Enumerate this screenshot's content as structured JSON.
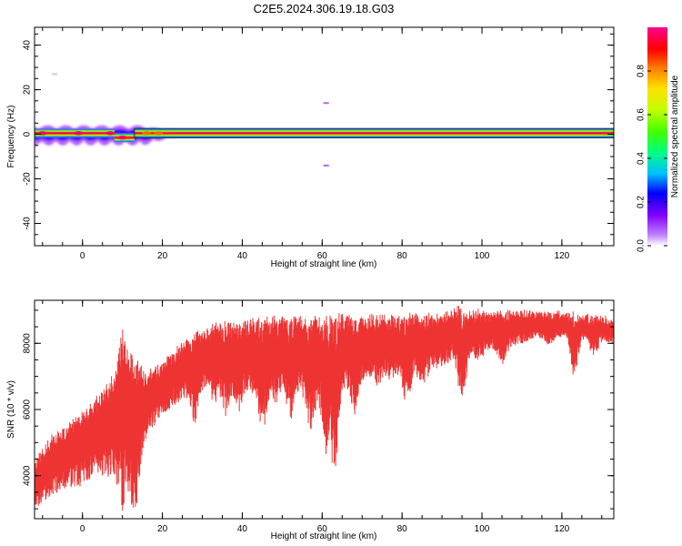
{
  "chart_data": [
    {
      "type": "heatmap",
      "title": "C2E5.2024.306.19.18.G03",
      "xlabel": "Height of straight line (km)",
      "ylabel": "Frequency (Hz)",
      "xlim": [
        -12,
        133
      ],
      "ylim": [
        -50,
        48
      ],
      "xticks": [
        0,
        20,
        40,
        60,
        80,
        100,
        120
      ],
      "yticks": [
        -40,
        -20,
        0,
        20,
        40
      ],
      "colorbar": {
        "label": "Normalized spectral amplitude",
        "ticks": [
          0.0,
          0.2,
          0.4,
          0.6,
          0.8
        ],
        "tick_labels": [
          "0.0",
          "0.2",
          "0.4",
          "0.6",
          "0.8"
        ],
        "range": [
          0,
          1
        ],
        "colormap": [
          "#ffffff",
          "#8000ff",
          "#0000ff",
          "#00c0ff",
          "#00ff60",
          "#80ff00",
          "#ffff00",
          "#ff8000",
          "#ff0000",
          "#ff00a0"
        ]
      },
      "ridge": {
        "frequency": 0.5,
        "x_range": [
          -12,
          133
        ],
        "band_halfwidth_hz": 1.5,
        "core_amplitude": 0.95,
        "edge_amplitude": 0.45
      },
      "ridge_segments": [
        {
          "x": [
            -12,
            8
          ],
          "frequency": 0.5
        },
        {
          "x": [
            8,
            13
          ],
          "frequency": -1.5
        },
        {
          "x": [
            13,
            133
          ],
          "frequency": 0.5
        }
      ],
      "low_height_spread": {
        "x_range": [
          -12,
          25
        ],
        "frequency_spread_hz": [
          -5,
          4
        ],
        "blobs": [
          {
            "x": -10,
            "frequency": 0.5,
            "amplitude": 0.95
          },
          {
            "x": -1,
            "frequency": 0.5,
            "amplitude": 0.95
          },
          {
            "x": 7,
            "frequency": 0.5,
            "amplitude": 0.95
          },
          {
            "x": 10,
            "frequency": -1.5,
            "amplitude": 0.95
          },
          {
            "x": 16,
            "frequency": 0.5,
            "amplitude": 0.8
          },
          {
            "x": 19,
            "frequency": 0.5,
            "amplitude": 0.8
          }
        ]
      },
      "specks": [
        {
          "x": -7,
          "frequency": 27,
          "amplitude": 0.05
        },
        {
          "x": 61,
          "frequency": 14,
          "amplitude": 0.12
        },
        {
          "x": 61,
          "frequency": -14,
          "amplitude": 0.12
        }
      ]
    },
    {
      "type": "area",
      "xlabel": "Height of straight line (km)",
      "ylabel": "SNR (10 * v/v)",
      "xlim": [
        -12,
        133
      ],
      "ylim": [
        2700,
        9300
      ],
      "xticks": [
        0,
        20,
        40,
        60,
        80,
        100,
        120
      ],
      "yticks": [
        4000,
        6000,
        8000
      ],
      "color": "#ee3333",
      "upper_envelope": {
        "x": [
          -12,
          -8,
          -4,
          0,
          4,
          8,
          10,
          12,
          16,
          20,
          24,
          28,
          32,
          36,
          40,
          44,
          48,
          52,
          56,
          60,
          64,
          68,
          72,
          76,
          80,
          84,
          88,
          92,
          94,
          96,
          100,
          104,
          108,
          112,
          116,
          120,
          124,
          128,
          133
        ],
        "values": [
          4500,
          5300,
          5600,
          6000,
          6500,
          7200,
          8600,
          7800,
          7200,
          7500,
          8000,
          8400,
          8600,
          8700,
          8750,
          8800,
          8850,
          8850,
          8900,
          8950,
          8950,
          8900,
          8900,
          8950,
          8950,
          8950,
          9000,
          9000,
          9300,
          9050,
          9050,
          9000,
          9050,
          9050,
          9000,
          9000,
          8950,
          8900,
          8800
        ]
      },
      "lower_envelope": {
        "x": [
          -12,
          -8,
          -4,
          0,
          4,
          8,
          10,
          12,
          16,
          20,
          24,
          28,
          32,
          36,
          40,
          44,
          48,
          52,
          56,
          60,
          64,
          68,
          72,
          76,
          80,
          84,
          88,
          92,
          96,
          100,
          104,
          108,
          112,
          116,
          120,
          124,
          128,
          133
        ],
        "values": [
          3000,
          3400,
          3600,
          3700,
          3900,
          4000,
          4600,
          3500,
          5200,
          5800,
          6200,
          6600,
          6800,
          6800,
          6600,
          6400,
          6500,
          6600,
          6500,
          6400,
          6600,
          6800,
          7000,
          7000,
          7100,
          7100,
          7200,
          7500,
          7700,
          7700,
          7900,
          7900,
          8100,
          8200,
          8200,
          8200,
          8100,
          8000
        ]
      },
      "dips": [
        {
          "x": 3,
          "min": 4100
        },
        {
          "x": 10,
          "min": 2900
        },
        {
          "x": 13,
          "min": 2800
        },
        {
          "x": 23,
          "min": 6100
        },
        {
          "x": 28,
          "min": 5600
        },
        {
          "x": 33,
          "min": 6000
        },
        {
          "x": 36,
          "min": 5700
        },
        {
          "x": 39,
          "min": 5900
        },
        {
          "x": 45,
          "min": 5300
        },
        {
          "x": 48,
          "min": 6100
        },
        {
          "x": 52,
          "min": 5700
        },
        {
          "x": 57,
          "min": 5200
        },
        {
          "x": 61,
          "min": 4600
        },
        {
          "x": 63,
          "min": 4100
        },
        {
          "x": 68,
          "min": 5800
        },
        {
          "x": 74,
          "min": 6700
        },
        {
          "x": 77,
          "min": 6900
        },
        {
          "x": 81,
          "min": 6100
        },
        {
          "x": 85,
          "min": 6600
        },
        {
          "x": 90,
          "min": 7300
        },
        {
          "x": 95,
          "min": 6200
        },
        {
          "x": 99,
          "min": 7500
        },
        {
          "x": 105,
          "min": 7300
        },
        {
          "x": 110,
          "min": 8000
        },
        {
          "x": 117,
          "min": 7900
        },
        {
          "x": 123,
          "min": 7000
        },
        {
          "x": 128,
          "min": 7600
        }
      ]
    }
  ]
}
